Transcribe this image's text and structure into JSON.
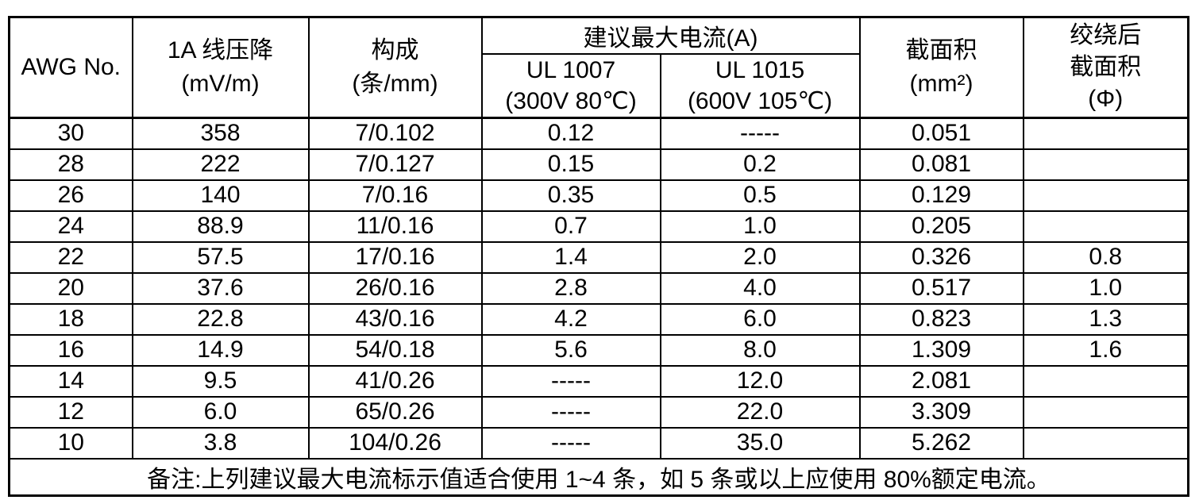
{
  "header": {
    "awg": "AWG No.",
    "voltage_drop": [
      "1A 线压降",
      "(mV/m)"
    ],
    "construction": [
      "构成",
      "(条/mm)"
    ],
    "max_current_group": "建议最大电流(A)",
    "ul1007": [
      "UL 1007",
      "(300V 80℃)"
    ],
    "ul1015": [
      "UL 1015",
      "(600V 105℃)"
    ],
    "cross_section": [
      "截面积",
      "(mm²)"
    ],
    "twisted": [
      "绞绕后",
      "截面积",
      "(Φ)"
    ]
  },
  "rows": [
    {
      "awg": "30",
      "drop": "358",
      "construction": "7/0.102",
      "ul1007": "0.12",
      "ul1015": "-----",
      "area": "0.051",
      "twisted": ""
    },
    {
      "awg": "28",
      "drop": "222",
      "construction": "7/0.127",
      "ul1007": "0.15",
      "ul1015": "0.2",
      "area": "0.081",
      "twisted": ""
    },
    {
      "awg": "26",
      "drop": "140",
      "construction": "7/0.16",
      "ul1007": "0.35",
      "ul1015": "0.5",
      "area": "0.129",
      "twisted": ""
    },
    {
      "awg": "24",
      "drop": "88.9",
      "construction": "11/0.16",
      "ul1007": "0.7",
      "ul1015": "1.0",
      "area": "0.205",
      "twisted": ""
    },
    {
      "awg": "22",
      "drop": "57.5",
      "construction": "17/0.16",
      "ul1007": "1.4",
      "ul1015": "2.0",
      "area": "0.326",
      "twisted": "0.8"
    },
    {
      "awg": "20",
      "drop": "37.6",
      "construction": "26/0.16",
      "ul1007": "2.8",
      "ul1015": "4.0",
      "area": "0.517",
      "twisted": "1.0"
    },
    {
      "awg": "18",
      "drop": "22.8",
      "construction": "43/0.16",
      "ul1007": "4.2",
      "ul1015": "6.0",
      "area": "0.823",
      "twisted": "1.3"
    },
    {
      "awg": "16",
      "drop": "14.9",
      "construction": "54/0.18",
      "ul1007": "5.6",
      "ul1015": "8.0",
      "area": "1.309",
      "twisted": "1.6"
    },
    {
      "awg": "14",
      "drop": "9.5",
      "construction": "41/0.26",
      "ul1007": "-----",
      "ul1015": "12.0",
      "area": "2.081",
      "twisted": ""
    },
    {
      "awg": "12",
      "drop": "6.0",
      "construction": "65/0.26",
      "ul1007": "-----",
      "ul1015": "22.0",
      "area": "3.309",
      "twisted": ""
    },
    {
      "awg": "10",
      "drop": "3.8",
      "construction": "104/0.26",
      "ul1007": "-----",
      "ul1015": "35.0",
      "area": "5.262",
      "twisted": ""
    }
  ],
  "note": "备注:上列建议最大电流标示值适合使用 1~4 条，如 5 条或以上应使用 80%额定电流。"
}
